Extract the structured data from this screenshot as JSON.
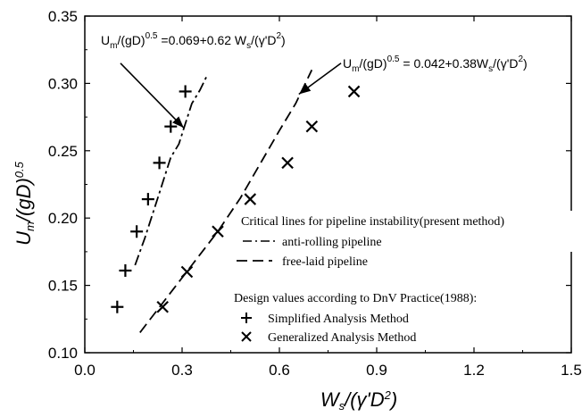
{
  "chart_data": {
    "type": "scatter",
    "xlabel": "W_s/(γ'D²)",
    "ylabel": "U_m/(gD)^0.5",
    "xlim": [
      0.0,
      1.5
    ],
    "ylim": [
      0.1,
      0.35
    ],
    "xticks": [
      "0.0",
      "0.3",
      "0.6",
      "0.9",
      "1.2",
      "1.5"
    ],
    "yticks": [
      "0.10",
      "0.15",
      "0.20",
      "0.25",
      "0.30",
      "0.35"
    ],
    "grid": false,
    "legend_position": "right",
    "lines": [
      {
        "name": "anti-rolling pipeline",
        "style": "dash-dot",
        "equation": "U_m/(gD)^0.5 =0.069+0.62 W_s/(γ'D²)",
        "x": [
          0.155,
          0.185,
          0.205,
          0.225,
          0.245,
          0.265,
          0.29,
          0.31,
          0.33,
          0.355,
          0.375
        ],
        "y": [
          0.165,
          0.185,
          0.2,
          0.215,
          0.23,
          0.245,
          0.255,
          0.27,
          0.285,
          0.295,
          0.305
        ]
      },
      {
        "name": "free-laid pipeline",
        "style": "dashed",
        "equation": "U_m/(gD)^0.5 = 0.042+0.38W_s/(γ'D²)",
        "x": [
          0.17,
          0.25,
          0.33,
          0.41,
          0.48,
          0.54,
          0.6,
          0.65,
          0.7
        ],
        "y": [
          0.115,
          0.14,
          0.165,
          0.19,
          0.215,
          0.24,
          0.265,
          0.285,
          0.31
        ]
      }
    ],
    "points": [
      {
        "name": "Simplified Analysis Method",
        "marker": "+",
        "x": [
          0.1,
          0.125,
          0.16,
          0.195,
          0.23,
          0.265,
          0.31
        ],
        "y": [
          0.134,
          0.161,
          0.19,
          0.214,
          0.241,
          0.268,
          0.294
        ]
      },
      {
        "name": "Generalized Analysis Method",
        "marker": "x",
        "x": [
          0.24,
          0.315,
          0.41,
          0.51,
          0.625,
          0.7,
          0.83
        ],
        "y": [
          0.134,
          0.16,
          0.19,
          0.214,
          0.241,
          0.268,
          0.294
        ]
      }
    ],
    "annotation_arrows": [
      {
        "from": [
          0.11,
          0.315
        ],
        "to": [
          0.305,
          0.267
        ]
      },
      {
        "from": [
          0.79,
          0.315
        ],
        "to": [
          0.66,
          0.292
        ]
      }
    ],
    "legend_text": {
      "title1": "Critical lines for pipeline instability(present method)",
      "title2": "Design values according to DnV Practice(1988):"
    }
  }
}
